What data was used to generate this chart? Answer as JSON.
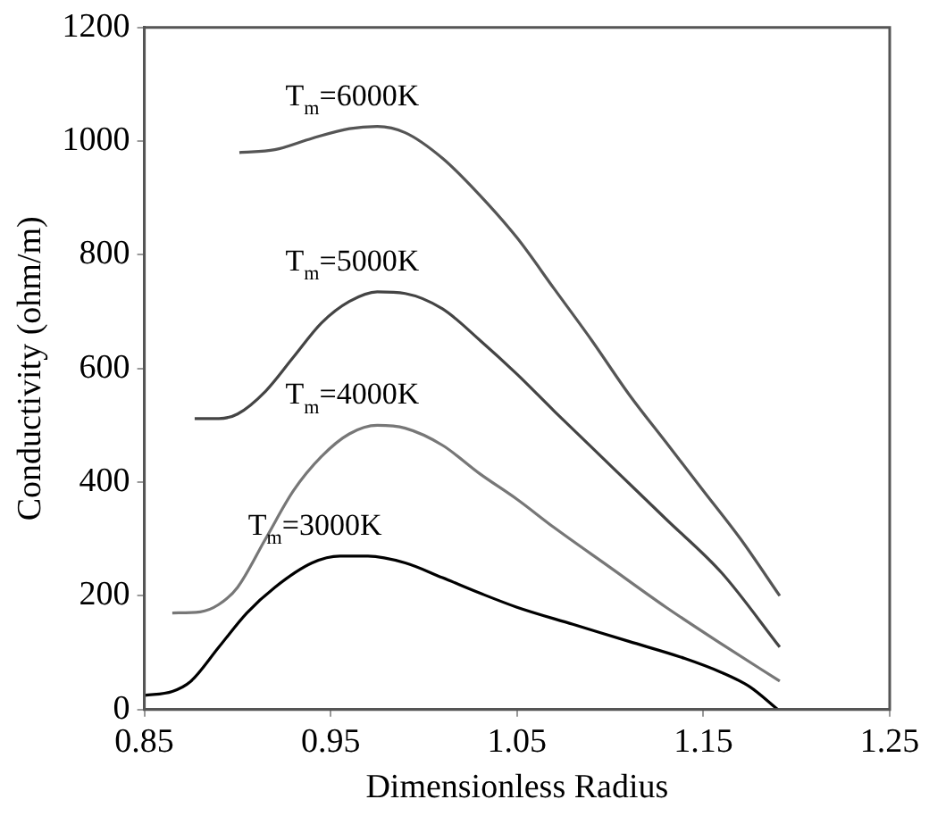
{
  "chart_data": {
    "type": "line",
    "xlabel": "Dimensionless Radius",
    "ylabel": "Conductivity (ohm/m)",
    "xlim": [
      0.85,
      1.25
    ],
    "xticks": [
      0.85,
      0.95,
      1.05,
      1.15,
      1.25
    ],
    "ylim": [
      0,
      1200
    ],
    "yticks": [
      0,
      200,
      400,
      600,
      800,
      1000,
      1200
    ],
    "grid": false,
    "legend": false,
    "marker": "none",
    "line_style": "solid",
    "series": [
      {
        "name": "T$_{m}$=6000K",
        "color": "#555555",
        "x": [
          0.901,
          0.92,
          0.94,
          0.96,
          0.975,
          0.99,
          1.01,
          1.03,
          1.05,
          1.07,
          1.09,
          1.11,
          1.13,
          1.15,
          1.17,
          1.191
        ],
        "values": [
          980,
          985,
          1005,
          1022,
          1026,
          1015,
          970,
          905,
          830,
          740,
          650,
          555,
          470,
          385,
          300,
          200
        ]
      },
      {
        "name": "T$_{m}$=5000K",
        "color": "#444444",
        "x": [
          0.877,
          0.89,
          0.9,
          0.915,
          0.93,
          0.945,
          0.96,
          0.975,
          0.99,
          1.01,
          1.03,
          1.05,
          1.07,
          1.1,
          1.13,
          1.16,
          1.191
        ],
        "values": [
          512,
          512,
          520,
          560,
          620,
          680,
          718,
          735,
          732,
          705,
          650,
          590,
          525,
          430,
          335,
          240,
          110
        ]
      },
      {
        "name": "T$_{m}$=4000K",
        "color": "#777777",
        "x": [
          0.865,
          0.88,
          0.89,
          0.9,
          0.915,
          0.93,
          0.945,
          0.96,
          0.975,
          0.99,
          1.01,
          1.03,
          1.05,
          1.07,
          1.1,
          1.13,
          1.16,
          1.191
        ],
        "values": [
          170,
          172,
          185,
          215,
          300,
          385,
          445,
          485,
          500,
          495,
          465,
          415,
          370,
          320,
          250,
          180,
          115,
          50
        ]
      },
      {
        "name": "T$_{m}$=3000K",
        "color": "#000000",
        "x": [
          0.85,
          0.865,
          0.875,
          0.89,
          0.905,
          0.92,
          0.94,
          0.955,
          0.97,
          0.99,
          1.01,
          1.03,
          1.05,
          1.08,
          1.11,
          1.14,
          1.16,
          1.175,
          1.19
        ],
        "values": [
          25,
          32,
          50,
          110,
          170,
          215,
          258,
          270,
          270,
          258,
          232,
          205,
          180,
          150,
          120,
          90,
          65,
          40,
          0
        ]
      }
    ]
  }
}
